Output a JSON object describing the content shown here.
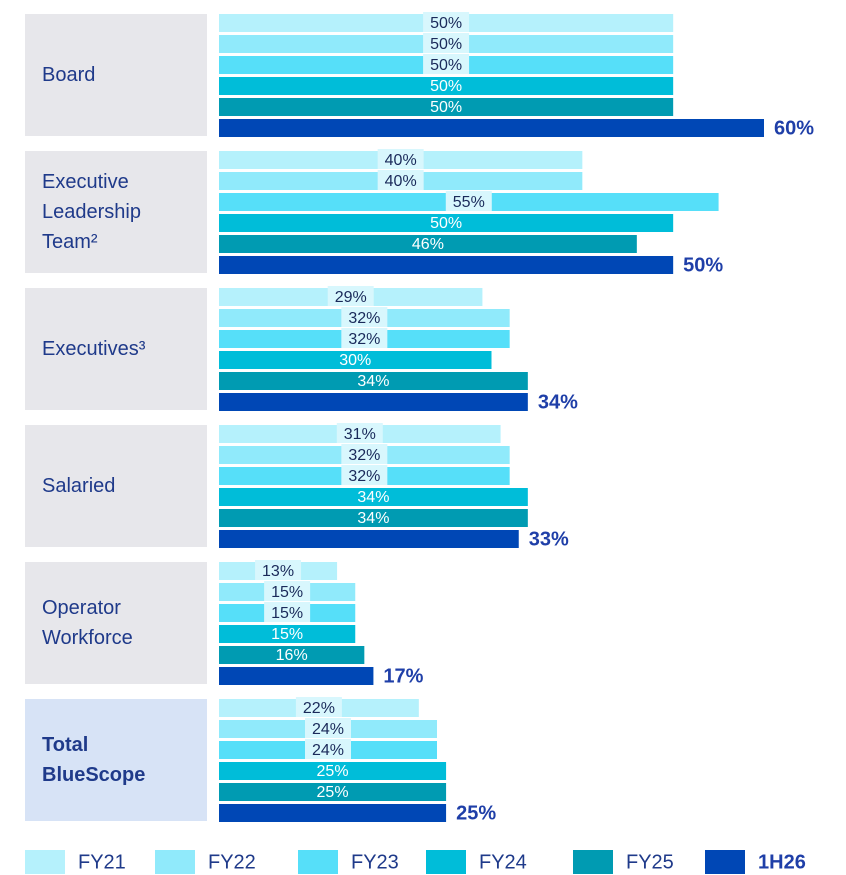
{
  "chart_data": {
    "type": "hbar",
    "categories": [
      "Board",
      "Executive Leadership Team²",
      "Executives³",
      "Salaried",
      "Operator Workforce",
      "Total BlueScope"
    ],
    "xlim": [
      0,
      60
    ],
    "series": [
      {
        "name": "FY21",
        "color": "#b5f1fc",
        "values": [
          50,
          40,
          29,
          31,
          13,
          22
        ],
        "value_labels": [
          "50%",
          "40%",
          "29%",
          "31%",
          "13%",
          "22%"
        ]
      },
      {
        "name": "FY22",
        "color": "#90eafb",
        "values": [
          50,
          40,
          32,
          32,
          15,
          24
        ],
        "value_labels": [
          "50%",
          "40%",
          "32%",
          "32%",
          "15%",
          "24%"
        ]
      },
      {
        "name": "FY23",
        "color": "#56dff9",
        "values": [
          50,
          55,
          32,
          32,
          15,
          24
        ],
        "value_labels": [
          "50%",
          "55%",
          "32%",
          "32%",
          "15%",
          "24%"
        ]
      },
      {
        "name": "FY24",
        "color": "#00bdd9",
        "values": [
          50,
          50,
          30,
          34,
          15,
          25
        ],
        "value_labels": [
          "50%",
          "50%",
          "30%",
          "34%",
          "15%",
          "25%"
        ]
      },
      {
        "name": "FY25",
        "color": "#009bb2",
        "values": [
          50,
          46,
          34,
          34,
          16,
          25
        ],
        "value_labels": [
          "50%",
          "46%",
          "34%",
          "34%",
          "16%",
          "25%"
        ]
      },
      {
        "name": "1H26",
        "color": "#0047b5",
        "values": [
          60,
          50,
          34,
          33,
          17,
          25
        ],
        "value_labels": [
          "60%",
          "50%",
          "34%",
          "33%",
          "17%",
          "25%"
        ]
      }
    ]
  }
}
